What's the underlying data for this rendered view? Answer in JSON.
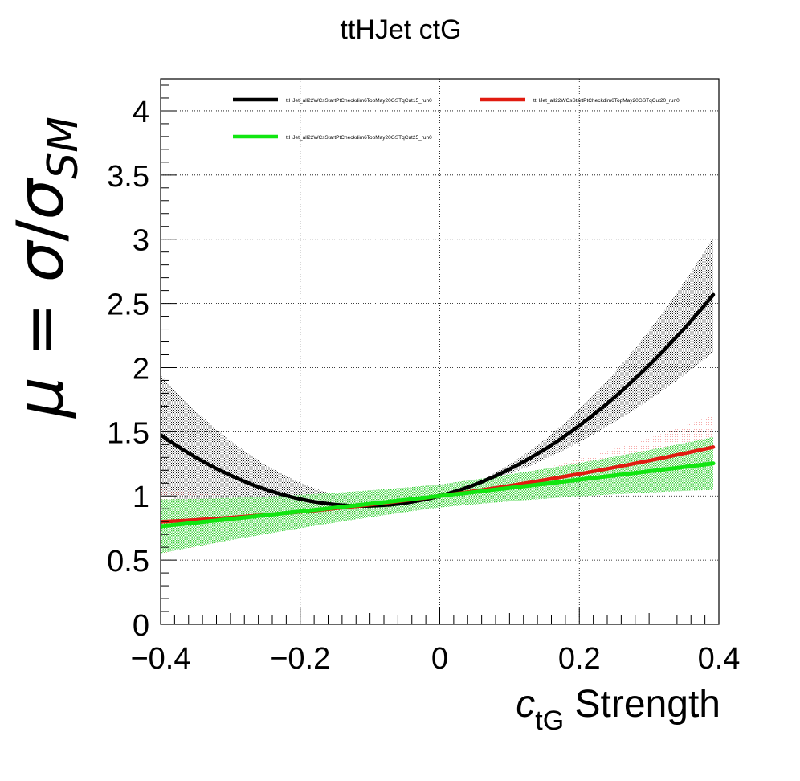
{
  "chart_data": {
    "type": "line",
    "title": "ttHJet ctG",
    "xlabel": {
      "main": "c",
      "sub": "tG",
      "rest": " Strength"
    },
    "ylabel": {
      "mu": "μ",
      "eq": " = ",
      "sigma": "σ",
      "slash": "/",
      "sigma2": "σ",
      "sub": "SM"
    },
    "xlim": [
      -0.4,
      0.4
    ],
    "ylim": [
      0,
      4.25
    ],
    "x_ticks": [
      -0.4,
      -0.2,
      0,
      0.2,
      0.4
    ],
    "x_tick_labels": [
      "−0.4",
      "−0.2",
      "0",
      "0.2",
      "0.4"
    ],
    "y_ticks": [
      0,
      0.5,
      1,
      1.5,
      2,
      2.5,
      3,
      3.5,
      4
    ],
    "y_tick_labels": [
      "0",
      "0.5",
      "1",
      "1.5",
      "2",
      "2.5",
      "3",
      "3.5",
      "4"
    ],
    "grid": true,
    "legend_position": "top",
    "series": [
      {
        "name": "ttHJet_all22WCsStartPtCheckdim6TopMay20GSTqCut15_run0",
        "color": "#000000",
        "band_color": "#000000",
        "band_style": "dots",
        "quadratic": {
          "a": 1.0,
          "b": 1.43,
          "c": 6.55
        },
        "band_halfwidth": {
          "base": 0.0,
          "lin": 0.12,
          "quad": 2.6
        }
      },
      {
        "name": "ttHJet_all22WCsStartPtCheckdim6TopMay20GSTqCut20_run0",
        "color": "#e11b10",
        "band_color": "#e11b10",
        "band_style": "dots-light",
        "quadratic": {
          "a": 1.0,
          "b": 0.74,
          "c": 0.59
        },
        "band_halfwidth": {
          "base": 0.05,
          "lin": 0.15,
          "quad": 0.9
        }
      },
      {
        "name": "ttHJet_all22WCsStartPtCheckdim6TopMay20GSTqCut25_run0",
        "color": "#11e611",
        "band_color": "#11cc11",
        "band_style": "dots",
        "quadratic": {
          "a": 1.0,
          "b": 0.62,
          "c": 0.07
        },
        "band_halfwidth": {
          "base": 0.09,
          "lin": 0.1,
          "quad": 0.5
        }
      }
    ]
  }
}
